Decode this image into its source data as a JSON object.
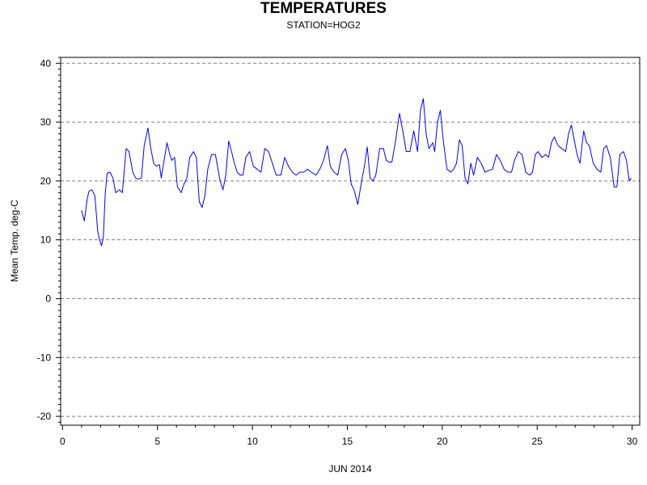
{
  "chart_data": {
    "type": "line",
    "title": "TEMPERATURES",
    "subtitle": "STATION=HOG2",
    "xlabel": "JUN 2014",
    "ylabel": "Mean Temp. deg-C",
    "xlim": [
      -0.1,
      30.4
    ],
    "ylim": [
      -21.5,
      41
    ],
    "xticks": [
      0,
      5,
      10,
      15,
      20,
      25,
      30
    ],
    "xtick_labels": [
      "0",
      "5",
      "10",
      "15",
      "20",
      "25",
      "30"
    ],
    "yticks": [
      -20,
      -10,
      0,
      10,
      20,
      30,
      40
    ],
    "ytick_labels": [
      "-20",
      "-10",
      "0",
      "10",
      "20",
      "30",
      "40"
    ],
    "grid": "horizontal-dashed",
    "line_color": "#0000ff",
    "series": [
      {
        "x": [
          1.0,
          1.15,
          1.3,
          1.4,
          1.55,
          1.7,
          1.85,
          1.95,
          2.05,
          2.15,
          2.25,
          2.35,
          2.5,
          2.65,
          2.8,
          3.0,
          3.15,
          3.35,
          3.5,
          3.7,
          3.85,
          4.0,
          4.15,
          4.3,
          4.5,
          4.65,
          4.8,
          4.95,
          5.1,
          5.2,
          5.35,
          5.5,
          5.65,
          5.75,
          5.9,
          6.05,
          6.25,
          6.4,
          6.55,
          6.7,
          6.9,
          7.05,
          7.2,
          7.35,
          7.5,
          7.65,
          7.85,
          8.05,
          8.3,
          8.45,
          8.6,
          8.75,
          8.9,
          9.05,
          9.2,
          9.35,
          9.5,
          9.65,
          9.85,
          10.05,
          10.25,
          10.45,
          10.65,
          10.85,
          11.05,
          11.25,
          11.5,
          11.7,
          11.9,
          12.1,
          12.3,
          12.5,
          12.7,
          12.9,
          13.1,
          13.35,
          13.55,
          13.75,
          13.95,
          14.1,
          14.3,
          14.5,
          14.7,
          14.9,
          15.05,
          15.2,
          15.35,
          15.55,
          15.75,
          15.9,
          16.05,
          16.2,
          16.35,
          16.5,
          16.7,
          16.9,
          17.05,
          17.2,
          17.35,
          17.55,
          17.75,
          17.95,
          18.1,
          18.3,
          18.5,
          18.7,
          18.85,
          19.0,
          19.15,
          19.3,
          19.5,
          19.6,
          19.75,
          19.9,
          20.05,
          20.25,
          20.45,
          20.6,
          20.75,
          20.9,
          21.05,
          21.2,
          21.35,
          21.5,
          21.65,
          21.85,
          22.05,
          22.25,
          22.45,
          22.65,
          22.85,
          23.05,
          23.25,
          23.45,
          23.65,
          23.8,
          24.0,
          24.2,
          24.4,
          24.6,
          24.75,
          24.9,
          25.05,
          25.25,
          25.45,
          25.6,
          25.75,
          25.9,
          26.1,
          26.3,
          26.5,
          26.65,
          26.8,
          26.95,
          27.1,
          27.25,
          27.45,
          27.6,
          27.75,
          27.95,
          28.15,
          28.35,
          28.5,
          28.65,
          28.85,
          29.05,
          29.2,
          29.35,
          29.55,
          29.7,
          29.85,
          29.95
        ],
        "y": [
          15.0,
          13.2,
          17.0,
          18.3,
          18.5,
          17.5,
          11.5,
          10.0,
          9.0,
          10.5,
          18.0,
          21.3,
          21.5,
          20.5,
          18.0,
          18.5,
          18.0,
          25.5,
          25.0,
          21.5,
          20.5,
          20.3,
          20.5,
          26.0,
          29.0,
          25.5,
          23.0,
          22.5,
          22.8,
          20.5,
          23.5,
          26.5,
          24.5,
          23.5,
          24.0,
          19.0,
          18.0,
          19.5,
          20.5,
          24.0,
          25.0,
          24.0,
          16.5,
          15.5,
          17.5,
          22.0,
          24.5,
          24.5,
          20.0,
          18.5,
          21.0,
          26.8,
          25.0,
          23.0,
          21.5,
          21.0,
          21.0,
          24.0,
          25.0,
          22.5,
          22.0,
          21.5,
          25.5,
          25.0,
          23.0,
          21.0,
          21.0,
          24.0,
          22.5,
          21.5,
          21.0,
          21.5,
          21.5,
          22.0,
          21.5,
          21.0,
          22.0,
          23.5,
          26.0,
          22.5,
          21.5,
          21.0,
          24.5,
          25.5,
          23.5,
          19.5,
          18.5,
          16.0,
          20.0,
          22.5,
          25.8,
          20.5,
          20.0,
          21.0,
          25.5,
          25.5,
          23.5,
          23.2,
          23.2,
          27.0,
          31.5,
          28.0,
          25.0,
          25.0,
          28.5,
          25.0,
          32.0,
          34.0,
          28.0,
          25.5,
          26.5,
          25.0,
          30.0,
          32.0,
          27.0,
          22.0,
          21.5,
          22.0,
          23.0,
          27.0,
          26.0,
          20.5,
          19.5,
          23.0,
          21.0,
          24.0,
          23.0,
          21.5,
          21.8,
          22.0,
          24.5,
          23.5,
          22.0,
          21.5,
          21.5,
          23.5,
          25.0,
          24.5,
          21.5,
          21.0,
          21.5,
          24.5,
          25.0,
          24.0,
          24.5,
          24.0,
          26.5,
          27.5,
          26.0,
          25.5,
          25.0,
          28.0,
          29.5,
          27.0,
          24.5,
          23.0,
          28.5,
          26.5,
          26.0,
          23.0,
          22.0,
          21.5,
          25.5,
          26.0,
          24.0,
          19.0,
          19.0,
          24.5,
          25.0,
          23.5,
          20.0,
          20.5
        ]
      }
    ]
  }
}
